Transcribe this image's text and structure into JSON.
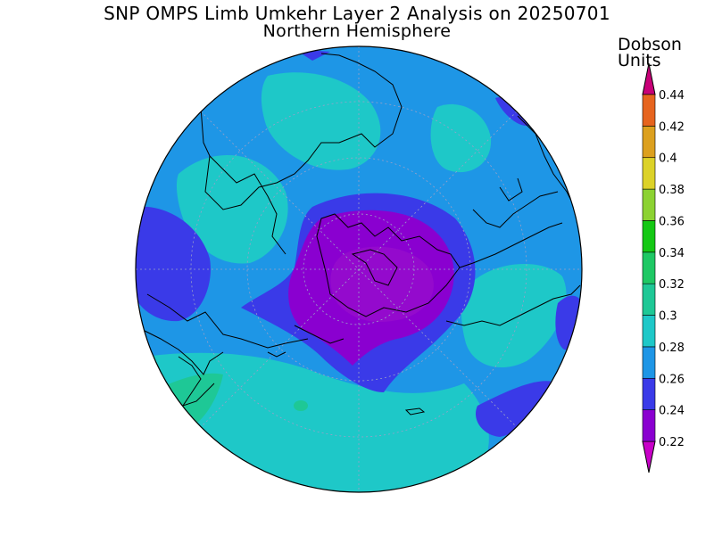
{
  "title": {
    "line1": "SNP OMPS Limb Umkehr Layer 2 Analysis on 20250701",
    "line2": "Northern Hemisphere"
  },
  "colorbar": {
    "unit_line1": "Dobson",
    "unit_line2": "Units",
    "levels": [
      "0.22",
      "0.24",
      "0.26",
      "0.28",
      "0.3",
      "0.32",
      "0.34",
      "0.36",
      "0.38",
      "0.4",
      "0.42",
      "0.44"
    ],
    "colors": [
      "#8a00d0",
      "#3a3ae8",
      "#1e96e6",
      "#1ec8c8",
      "#1ec896",
      "#1ec864",
      "#14c814",
      "#8cd232",
      "#dcd228",
      "#dca01e",
      "#e6641e",
      "#e60000"
    ],
    "low_color": "#c800c8",
    "high_color": "#c80078"
  }
}
